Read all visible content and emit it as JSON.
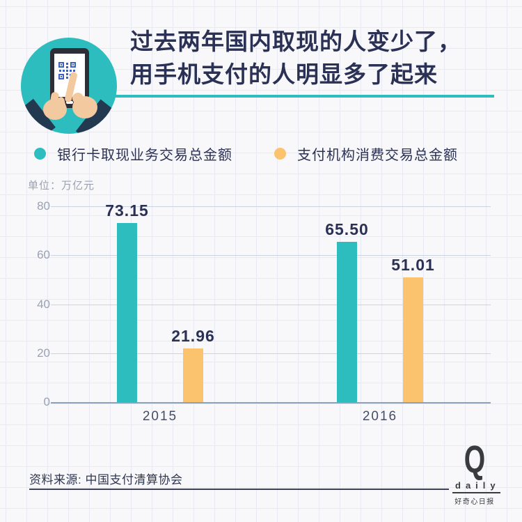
{
  "header": {
    "title_line1": "过去两年国内取现的人变少了，",
    "title_line2": "用手机支付的人明显多了起来"
  },
  "legend": {
    "items": [
      {
        "label": "银行卡取现业务交易总金额",
        "color": "#2dbdbf"
      },
      {
        "label": "支付机构消费交易总金额",
        "color": "#fcc36e"
      }
    ]
  },
  "chart_data": {
    "type": "bar",
    "title": "过去两年国内取现的人变少了，用手机支付的人明显多了起来",
    "unit_label": "单位：万亿元",
    "categories": [
      "2015",
      "2016"
    ],
    "series": [
      {
        "name": "银行卡取现业务交易总金额",
        "color": "#2dbdbf",
        "values": [
          73.15,
          65.5
        ],
        "labels": [
          "73.15",
          "65.50"
        ]
      },
      {
        "name": "支付机构消费交易总金额",
        "color": "#fcc36e",
        "values": [
          21.96,
          51.01
        ],
        "labels": [
          "21.96",
          "51.01"
        ]
      }
    ],
    "y_ticks": [
      0,
      20,
      40,
      60,
      80
    ],
    "ylim": [
      0,
      80
    ],
    "grid": true,
    "legend_position": "top",
    "xlabel": "",
    "ylabel": "单位：万亿元"
  },
  "footer": {
    "source": "资料来源: 中国支付清算协会"
  },
  "logo": {
    "letter": "Q",
    "word": "daily",
    "subtitle": "好奇心日报"
  },
  "colors": {
    "teal": "#2dbdbf",
    "orange": "#fcc36e",
    "navy_text": "#2b3154",
    "gray_text": "#9aa1b0",
    "background": "#f8f8fb"
  }
}
